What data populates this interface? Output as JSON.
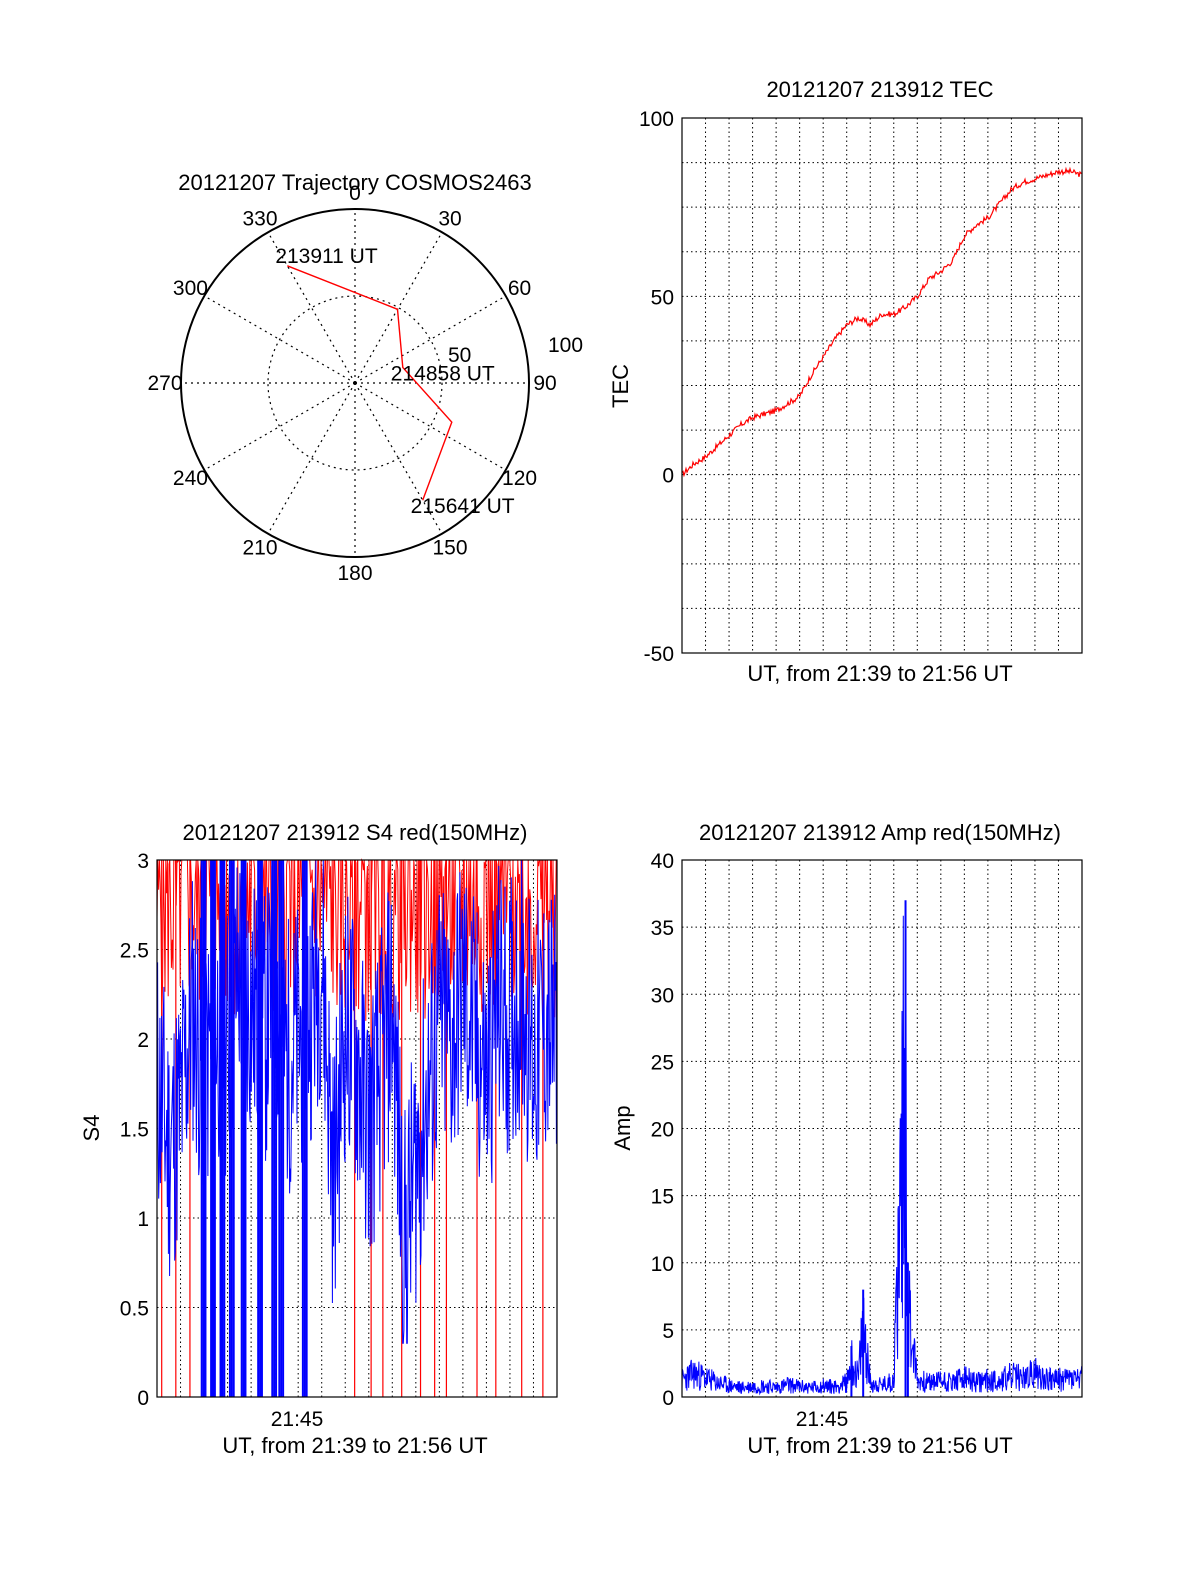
{
  "colors": {
    "red": "#ff0000",
    "blue": "#0000ff",
    "axis": "#000000",
    "grid": "#000000",
    "background": "#ffffff"
  },
  "chart_data": [
    {
      "type": "polar",
      "title": "20121207 Trajectory COSMOS2463",
      "azimuth_labels": [
        "0",
        "30",
        "60",
        "90",
        "120",
        "150",
        "180",
        "210",
        "240",
        "270",
        "300",
        "330"
      ],
      "radial_tick_labels": [
        "50",
        "100"
      ],
      "grid": true,
      "series": [
        {
          "color": "red",
          "points": [
            {
              "azimuth": 330,
              "elevation": 20,
              "label": "213911 UT"
            },
            {
              "azimuth": 30,
              "elevation": 46
            },
            {
              "azimuth": 72,
              "elevation": 64,
              "label": "214858 UT"
            },
            {
              "azimuth": 112,
              "elevation": 36
            },
            {
              "azimuth": 150,
              "elevation": 20,
              "label": "215641 UT"
            }
          ]
        }
      ]
    },
    {
      "type": "line",
      "title": "20121207 213912 TEC",
      "xlabel": "UT, from 21:39 to 21:56 UT",
      "ylabel": "TEC",
      "xlim": [
        0,
        17
      ],
      "ylim": [
        -50,
        100
      ],
      "yticks": [
        -50,
        0,
        50,
        100
      ],
      "grid": true,
      "series": [
        {
          "color": "red",
          "x": [
            0,
            0.5,
            1,
            1.5,
            2,
            2.5,
            3,
            3.5,
            4,
            4.5,
            5,
            5.5,
            6,
            6.5,
            7,
            7.5,
            8,
            8.5,
            9,
            9.5,
            10,
            10.5,
            11,
            11.5,
            12,
            12.5,
            13,
            13.5,
            14,
            14.5,
            15,
            15.5,
            16,
            16.5,
            17
          ],
          "y": [
            0,
            3,
            5,
            8,
            11,
            14,
            16,
            17,
            18,
            20,
            22,
            28,
            33,
            38,
            42,
            44,
            42,
            45,
            45,
            47,
            50,
            55,
            57,
            60,
            67,
            70,
            72,
            76,
            80,
            82,
            83,
            84,
            85,
            85,
            84
          ]
        }
      ]
    },
    {
      "type": "line",
      "title": "20121207 213912 S4 red(150MHz)",
      "xlabel": "UT, from 21:39 to 21:56 UT",
      "ylabel": "S4",
      "xlim": [
        0,
        17
      ],
      "ylim": [
        0,
        3
      ],
      "yticks": [
        "0",
        "0.5",
        "1",
        "1.5",
        "2",
        "2.5",
        "3"
      ],
      "xticks": [
        {
          "x": 6,
          "label": "21:45"
        }
      ],
      "grid": true,
      "series": [
        {
          "color": "red",
          "x": [
            0,
            0.5,
            1,
            1.5,
            2,
            2.5,
            3,
            3.5,
            4,
            4.5,
            5,
            5.5,
            6,
            6.5,
            7,
            7.5,
            8,
            8.5,
            9,
            9.5,
            10,
            10.5,
            11,
            11.5,
            12,
            12.5,
            13,
            13.5,
            14,
            14.5,
            15,
            15.5,
            16,
            16.5,
            17
          ],
          "y": [
            3,
            3,
            3,
            3,
            3,
            3,
            3,
            3,
            3,
            3,
            3,
            3,
            3,
            3,
            3,
            3,
            3,
            3,
            3,
            3,
            3,
            3,
            3,
            3,
            3,
            3,
            3,
            3,
            3,
            3,
            3,
            3,
            3,
            3,
            3
          ],
          "drops": [
            0.2,
            0.8,
            1.4,
            1.9,
            2.3,
            6.3,
            8.4,
            9.1,
            9.6,
            10.4,
            11.2,
            11.8,
            12.3,
            13.6,
            14.4,
            15.5,
            16.4
          ]
        },
        {
          "color": "blue",
          "x": [
            0,
            0.5,
            1,
            1.5,
            2,
            2.5,
            3,
            3.5,
            4,
            4.5,
            5,
            5.5,
            6,
            6.5,
            7,
            7.5,
            8,
            8.5,
            9,
            9.5,
            10,
            10.5,
            11,
            11.5,
            12,
            12.5,
            13,
            13.5,
            14,
            14.5,
            15,
            15.5,
            16,
            16.5,
            17
          ],
          "y": [
            1.8,
            1.4,
            1.6,
            2.2,
            1.8,
            2.1,
            2.0,
            2.4,
            2.2,
            2.0,
            2.3,
            1.9,
            2.0,
            2.2,
            2.5,
            1.2,
            2.1,
            1.9,
            1.5,
            1.8,
            2.2,
            0.8,
            1.3,
            1.7,
            2.1,
            2.0,
            2.3,
            2.0,
            1.8,
            2.2,
            2.1,
            2.3,
            1.9,
            2.1,
            2.0
          ],
          "drops": [
            1.9,
            2.3,
            2.7,
            3.1,
            3.6,
            4.3,
            4.9,
            5.2,
            6.2
          ]
        }
      ]
    },
    {
      "type": "line",
      "title": "20121207 213912 Amp red(150MHz)",
      "xlabel": "UT, from 21:39 to 21:56 UT",
      "ylabel": "Amp",
      "xlim": [
        0,
        17
      ],
      "ylim": [
        0,
        40
      ],
      "yticks": [
        0,
        5,
        10,
        15,
        20,
        25,
        30,
        35,
        40
      ],
      "xticks": [
        {
          "x": 6,
          "label": "21:45"
        }
      ],
      "grid": true,
      "series": [
        {
          "color": "blue",
          "x": [
            0,
            0.5,
            1,
            1.5,
            2,
            2.5,
            3,
            3.5,
            4,
            4.5,
            5,
            5.5,
            6,
            6.5,
            7,
            7.2,
            7.5,
            7.7,
            8,
            8.5,
            9,
            9.5,
            9.6,
            10,
            10.5,
            11,
            11.5,
            12,
            12.5,
            13,
            13.5,
            14,
            14.5,
            15,
            15.5,
            16,
            16.5,
            17
          ],
          "y": [
            1.8,
            2.5,
            2.0,
            1.5,
            1.2,
            1.0,
            1.1,
            1.2,
            1.0,
            1.3,
            1.1,
            1.0,
            1.2,
            1.1,
            1.5,
            3.8,
            2.0,
            8.0,
            1.5,
            1.2,
            1.8,
            37.0,
            10.0,
            1.8,
            1.5,
            1.8,
            1.6,
            2.0,
            1.5,
            1.8,
            1.7,
            2.2,
            2.0,
            2.5,
            2.0,
            1.8,
            2.0,
            1.9
          ]
        }
      ]
    }
  ]
}
